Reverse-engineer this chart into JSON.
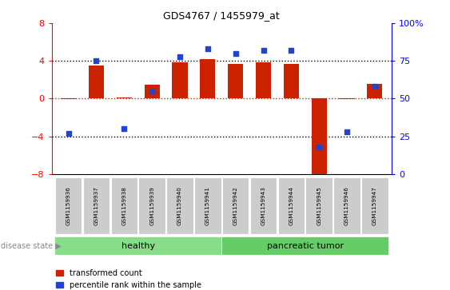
{
  "title": "GDS4767 / 1455979_at",
  "samples": [
    "GSM1159936",
    "GSM1159937",
    "GSM1159938",
    "GSM1159939",
    "GSM1159940",
    "GSM1159941",
    "GSM1159942",
    "GSM1159943",
    "GSM1159944",
    "GSM1159945",
    "GSM1159946",
    "GSM1159947"
  ],
  "red_values": [
    -0.08,
    3.5,
    0.12,
    1.5,
    3.85,
    4.2,
    3.65,
    3.85,
    3.65,
    -8.5,
    -0.08,
    1.6
  ],
  "blue_values_pct": [
    27,
    75,
    30,
    55,
    78,
    83,
    80,
    82,
    82,
    18,
    28,
    58
  ],
  "ylim_left": [
    -8,
    8
  ],
  "ylim_right": [
    0,
    100
  ],
  "yticks_left": [
    -8,
    -4,
    0,
    4,
    8
  ],
  "yticks_right": [
    0,
    25,
    50,
    75,
    100
  ],
  "yticklabels_right": [
    "0",
    "25",
    "50",
    "75",
    "100%"
  ],
  "dotted_lines": [
    -4,
    4
  ],
  "healthy_indices": [
    0,
    1,
    2,
    3,
    4,
    5
  ],
  "tumor_indices": [
    6,
    7,
    8,
    9,
    10,
    11
  ],
  "healthy_label": "healthy",
  "tumor_label": "pancreatic tumor",
  "disease_state_label": "disease state",
  "legend_red": "transformed count",
  "legend_blue": "percentile rank within the sample",
  "bar_color": "#cc2200",
  "dot_color": "#2244cc",
  "healthy_bg": "#88dd88",
  "tumor_bg": "#66cc66",
  "tick_bg": "#cccccc",
  "bar_width": 0.55
}
